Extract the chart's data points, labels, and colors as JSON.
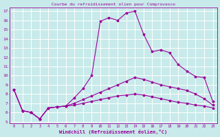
{
  "title": "Courbe du refroidissement olien pour Comprovasco",
  "xlabel": "Windchill (Refroidissement éolien,°C)",
  "background_color": "#c8eaea",
  "grid_color": "#ffffff",
  "line_color": "#990099",
  "xlim": [
    -0.5,
    23.5
  ],
  "ylim": [
    4.8,
    17.4
  ],
  "xticks": [
    0,
    1,
    2,
    3,
    4,
    5,
    6,
    7,
    8,
    9,
    10,
    11,
    12,
    13,
    14,
    15,
    16,
    17,
    18,
    19,
    20,
    21,
    22,
    23
  ],
  "yticks": [
    5,
    6,
    7,
    8,
    9,
    10,
    11,
    12,
    13,
    14,
    15,
    16,
    17
  ],
  "line1_x": [
    0,
    1,
    2,
    3,
    4,
    5,
    6,
    7,
    8,
    9,
    10,
    11,
    12,
    13,
    14,
    15,
    16,
    17,
    18,
    19,
    20,
    21,
    22,
    23
  ],
  "line1_y": [
    8.5,
    6.2,
    6.0,
    5.3,
    6.5,
    6.6,
    6.7,
    7.6,
    8.6,
    10.0,
    15.9,
    16.3,
    16.0,
    16.8,
    17.0,
    14.5,
    12.6,
    12.8,
    12.5,
    11.2,
    10.5,
    9.9,
    9.8,
    7.2
  ],
  "line2_x": [
    0,
    1,
    2,
    3,
    4,
    5,
    6,
    7,
    8,
    9,
    10,
    11,
    12,
    13,
    14,
    15,
    16,
    17,
    18,
    19,
    20,
    21,
    22,
    23
  ],
  "line2_y": [
    8.5,
    6.2,
    6.0,
    5.3,
    6.5,
    6.6,
    6.7,
    7.0,
    7.4,
    7.8,
    8.2,
    8.6,
    9.0,
    9.4,
    9.8,
    9.6,
    9.3,
    9.0,
    8.8,
    8.6,
    8.4,
    8.0,
    7.5,
    6.8
  ],
  "line3_x": [
    0,
    1,
    2,
    3,
    4,
    5,
    6,
    7,
    8,
    9,
    10,
    11,
    12,
    13,
    14,
    15,
    16,
    17,
    18,
    19,
    20,
    21,
    22,
    23
  ],
  "line3_y": [
    8.5,
    6.2,
    6.0,
    5.3,
    6.5,
    6.6,
    6.7,
    6.8,
    7.0,
    7.2,
    7.4,
    7.6,
    7.8,
    7.9,
    8.0,
    7.9,
    7.7,
    7.5,
    7.3,
    7.1,
    7.0,
    6.8,
    6.7,
    6.5
  ]
}
